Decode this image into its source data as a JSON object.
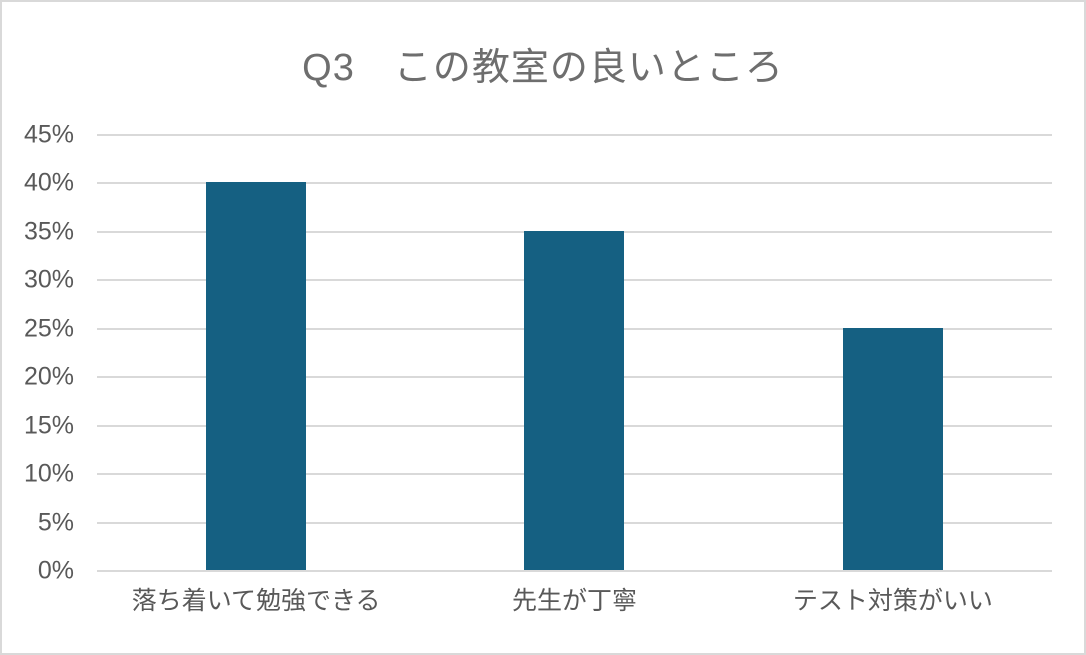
{
  "chart_data": {
    "type": "bar",
    "title": "Q3　この教室の良いところ",
    "categories": [
      "落ち着いて勉強できる",
      "先生が丁寧",
      "テスト対策がいい"
    ],
    "values": [
      40,
      35,
      25
    ],
    "unit": "%",
    "ylim": [
      0,
      45
    ],
    "ytick_step": 5,
    "ytick_labels": [
      "0%",
      "5%",
      "10%",
      "15%",
      "20%",
      "25%",
      "30%",
      "35%",
      "40%",
      "45%"
    ],
    "grid": true,
    "legend": "none",
    "colors": {
      "bar": "#156082",
      "gridline": "#d9d9d9",
      "axis_text": "#595959",
      "title_text": "#6e6e6e",
      "frame_border": "#d9d9d9",
      "background": "#ffffff"
    }
  }
}
